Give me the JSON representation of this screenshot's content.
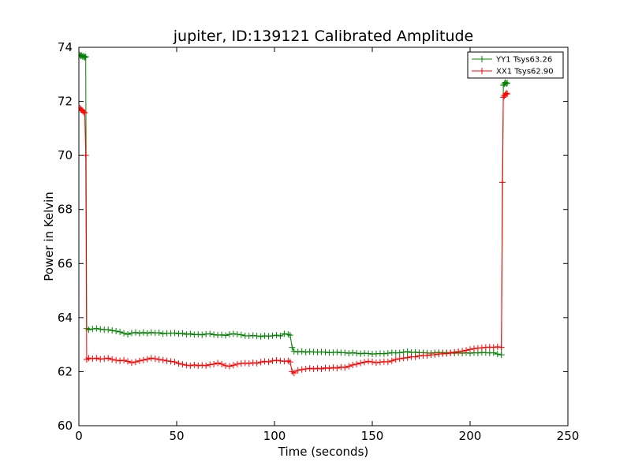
{
  "chart_data": {
    "type": "line",
    "title": "jupiter, ID:139121 Calibrated Amplitude",
    "xlabel": "Time (seconds)",
    "ylabel": "Power in Kelvin",
    "xlim": [
      0,
      250
    ],
    "ylim": [
      60,
      74
    ],
    "xticks": [
      0,
      50,
      100,
      150,
      200,
      250
    ],
    "yticks": [
      60,
      62,
      64,
      66,
      68,
      70,
      72,
      74
    ],
    "grid": false,
    "legend_position": "top-right",
    "marker": "plus",
    "series": [
      {
        "name": "YY1 Tsys63.26",
        "color": "#008000",
        "points": [
          [
            0.5,
            73.72
          ],
          [
            1.0,
            73.68
          ],
          [
            1.5,
            73.7
          ],
          [
            2.0,
            73.65
          ],
          [
            2.5,
            73.67
          ],
          [
            3.0,
            73.63
          ],
          [
            3.5,
            73.65
          ],
          [
            4.0,
            63.6
          ],
          [
            5,
            63.55
          ],
          [
            7,
            63.58
          ],
          [
            9,
            63.6
          ],
          [
            11,
            63.57
          ],
          [
            13,
            63.55
          ],
          [
            15,
            63.55
          ],
          [
            17,
            63.52
          ],
          [
            19,
            63.5
          ],
          [
            21,
            63.47
          ],
          [
            23,
            63.42
          ],
          [
            25,
            63.38
          ],
          [
            27,
            63.43
          ],
          [
            29,
            63.45
          ],
          [
            31,
            63.42
          ],
          [
            33,
            63.45
          ],
          [
            35,
            63.42
          ],
          [
            37,
            63.45
          ],
          [
            39,
            63.43
          ],
          [
            41,
            63.44
          ],
          [
            43,
            63.4
          ],
          [
            45,
            63.42
          ],
          [
            47,
            63.42
          ],
          [
            49,
            63.43
          ],
          [
            51,
            63.4
          ],
          [
            53,
            63.42
          ],
          [
            55,
            63.38
          ],
          [
            57,
            63.4
          ],
          [
            59,
            63.37
          ],
          [
            61,
            63.38
          ],
          [
            63,
            63.36
          ],
          [
            65,
            63.39
          ],
          [
            67,
            63.4
          ],
          [
            69,
            63.37
          ],
          [
            71,
            63.35
          ],
          [
            73,
            63.36
          ],
          [
            75,
            63.34
          ],
          [
            77,
            63.38
          ],
          [
            79,
            63.4
          ],
          [
            81,
            63.38
          ],
          [
            83,
            63.36
          ],
          [
            85,
            63.33
          ],
          [
            87,
            63.32
          ],
          [
            89,
            63.34
          ],
          [
            91,
            63.32
          ],
          [
            93,
            63.3
          ],
          [
            95,
            63.33
          ],
          [
            97,
            63.31
          ],
          [
            99,
            63.33
          ],
          [
            101,
            63.35
          ],
          [
            103,
            63.32
          ],
          [
            105,
            63.4
          ],
          [
            107,
            63.38
          ],
          [
            108,
            63.35
          ],
          [
            109,
            62.9
          ],
          [
            110,
            62.75
          ],
          [
            112,
            62.73
          ],
          [
            114,
            62.75
          ],
          [
            116,
            62.72
          ],
          [
            118,
            62.74
          ],
          [
            120,
            62.73
          ],
          [
            122,
            62.72
          ],
          [
            124,
            62.73
          ],
          [
            126,
            62.72
          ],
          [
            128,
            62.7
          ],
          [
            130,
            62.71
          ],
          [
            132,
            62.72
          ],
          [
            134,
            62.7
          ],
          [
            136,
            62.7
          ],
          [
            138,
            62.68
          ],
          [
            140,
            62.7
          ],
          [
            142,
            62.68
          ],
          [
            144,
            62.66
          ],
          [
            146,
            62.68
          ],
          [
            148,
            62.67
          ],
          [
            150,
            62.65
          ],
          [
            152,
            62.66
          ],
          [
            154,
            62.67
          ],
          [
            156,
            62.66
          ],
          [
            158,
            62.68
          ],
          [
            160,
            62.7
          ],
          [
            162,
            62.69
          ],
          [
            164,
            62.7
          ],
          [
            166,
            62.72
          ],
          [
            168,
            62.74
          ],
          [
            170,
            62.71
          ],
          [
            172,
            62.72
          ],
          [
            174,
            62.7
          ],
          [
            176,
            62.7
          ],
          [
            178,
            62.69
          ],
          [
            180,
            62.68
          ],
          [
            182,
            62.7
          ],
          [
            184,
            62.71
          ],
          [
            186,
            62.7
          ],
          [
            188,
            62.7
          ],
          [
            190,
            62.69
          ],
          [
            192,
            62.68
          ],
          [
            194,
            62.7
          ],
          [
            196,
            62.68
          ],
          [
            198,
            62.7
          ],
          [
            200,
            62.68
          ],
          [
            202,
            62.7
          ],
          [
            204,
            62.69
          ],
          [
            206,
            62.71
          ],
          [
            208,
            62.7
          ],
          [
            210,
            62.69
          ],
          [
            212,
            62.7
          ],
          [
            214,
            62.65
          ],
          [
            216,
            62.62
          ],
          [
            217,
            72.6
          ],
          [
            217.5,
            72.65
          ],
          [
            218,
            72.7
          ],
          [
            218.5,
            72.66
          ],
          [
            219,
            72.68
          ]
        ]
      },
      {
        "name": "XX1 Tsys62.90",
        "color": "#ff0000",
        "points": [
          [
            0.5,
            71.75
          ],
          [
            1.0,
            71.7
          ],
          [
            1.5,
            71.68
          ],
          [
            2.0,
            71.65
          ],
          [
            2.5,
            71.6
          ],
          [
            3.0,
            71.58
          ],
          [
            3.5,
            70.0
          ],
          [
            4.0,
            62.45
          ],
          [
            5,
            62.5
          ],
          [
            7,
            62.48
          ],
          [
            9,
            62.5
          ],
          [
            11,
            62.46
          ],
          [
            13,
            62.48
          ],
          [
            15,
            62.5
          ],
          [
            17,
            62.45
          ],
          [
            19,
            62.42
          ],
          [
            21,
            62.4
          ],
          [
            23,
            62.42
          ],
          [
            25,
            62.38
          ],
          [
            27,
            62.33
          ],
          [
            29,
            62.36
          ],
          [
            31,
            62.4
          ],
          [
            33,
            62.43
          ],
          [
            35,
            62.46
          ],
          [
            37,
            62.5
          ],
          [
            39,
            62.48
          ],
          [
            41,
            62.45
          ],
          [
            43,
            62.43
          ],
          [
            45,
            62.4
          ],
          [
            47,
            62.38
          ],
          [
            49,
            62.36
          ],
          [
            51,
            62.3
          ],
          [
            53,
            62.27
          ],
          [
            55,
            62.24
          ],
          [
            57,
            62.22
          ],
          [
            59,
            62.25
          ],
          [
            61,
            62.22
          ],
          [
            63,
            62.24
          ],
          [
            65,
            62.22
          ],
          [
            67,
            62.26
          ],
          [
            69,
            62.28
          ],
          [
            71,
            62.32
          ],
          [
            73,
            62.28
          ],
          [
            75,
            62.22
          ],
          [
            77,
            62.2
          ],
          [
            79,
            62.24
          ],
          [
            81,
            62.28
          ],
          [
            83,
            62.3
          ],
          [
            85,
            62.32
          ],
          [
            87,
            62.3
          ],
          [
            89,
            62.33
          ],
          [
            91,
            62.31
          ],
          [
            93,
            62.35
          ],
          [
            95,
            62.38
          ],
          [
            97,
            62.36
          ],
          [
            99,
            62.4
          ],
          [
            101,
            62.42
          ],
          [
            103,
            62.4
          ],
          [
            105,
            62.38
          ],
          [
            107,
            62.4
          ],
          [
            108,
            62.36
          ],
          [
            109,
            62.0
          ],
          [
            110,
            61.95
          ],
          [
            112,
            62.05
          ],
          [
            114,
            62.08
          ],
          [
            116,
            62.1
          ],
          [
            118,
            62.12
          ],
          [
            120,
            62.1
          ],
          [
            122,
            62.12
          ],
          [
            124,
            62.1
          ],
          [
            126,
            62.14
          ],
          [
            128,
            62.12
          ],
          [
            130,
            62.15
          ],
          [
            132,
            62.13
          ],
          [
            134,
            62.17
          ],
          [
            136,
            62.15
          ],
          [
            138,
            62.2
          ],
          [
            140,
            62.25
          ],
          [
            142,
            62.28
          ],
          [
            144,
            62.32
          ],
          [
            146,
            62.35
          ],
          [
            148,
            62.38
          ],
          [
            150,
            62.36
          ],
          [
            152,
            62.33
          ],
          [
            154,
            62.35
          ],
          [
            156,
            62.37
          ],
          [
            158,
            62.36
          ],
          [
            160,
            62.4
          ],
          [
            162,
            62.45
          ],
          [
            164,
            62.48
          ],
          [
            166,
            62.5
          ],
          [
            168,
            62.52
          ],
          [
            170,
            62.55
          ],
          [
            172,
            62.55
          ],
          [
            174,
            62.58
          ],
          [
            176,
            62.6
          ],
          [
            178,
            62.6
          ],
          [
            180,
            62.62
          ],
          [
            182,
            62.63
          ],
          [
            184,
            62.65
          ],
          [
            186,
            62.66
          ],
          [
            188,
            62.67
          ],
          [
            190,
            62.7
          ],
          [
            192,
            62.72
          ],
          [
            194,
            62.74
          ],
          [
            196,
            62.76
          ],
          [
            198,
            62.79
          ],
          [
            200,
            62.82
          ],
          [
            202,
            62.85
          ],
          [
            204,
            62.87
          ],
          [
            206,
            62.88
          ],
          [
            208,
            62.9
          ],
          [
            210,
            62.91
          ],
          [
            212,
            62.9
          ],
          [
            214,
            62.92
          ],
          [
            216,
            62.9
          ],
          [
            216.5,
            69.0
          ],
          [
            217,
            72.15
          ],
          [
            217.5,
            72.2
          ],
          [
            218,
            72.25
          ],
          [
            218.5,
            72.3
          ],
          [
            219,
            72.28
          ]
        ]
      }
    ]
  }
}
